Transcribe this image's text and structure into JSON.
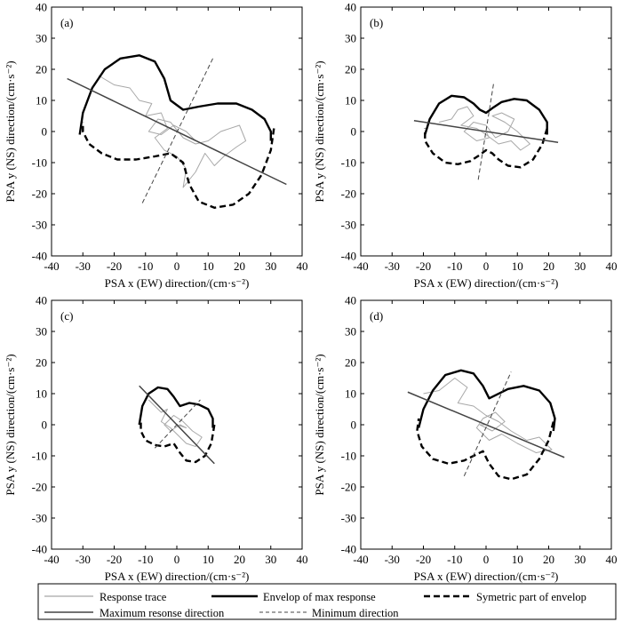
{
  "figure": {
    "legend": {
      "items": [
        {
          "label": "Response trace",
          "style": "thin-gray"
        },
        {
          "label": "Envelop of max response",
          "style": "thick-solid"
        },
        {
          "label": "Symetric part of envelop",
          "style": "thick-dashed"
        },
        {
          "label": "Maximum resonse direction",
          "style": "medium-solid"
        },
        {
          "label": "Minimum direction",
          "style": "thin-dashed"
        }
      ]
    },
    "colors": {
      "trace": "#a8a8a8",
      "envelope": "#000000",
      "max_direction": "#444444",
      "min_direction": "#444444"
    }
  },
  "chart_data": [
    {
      "type": "scatter",
      "panel": "(a)",
      "title": "",
      "xlabel": "PSA x (EW) direction/(cm·s⁻²)",
      "ylabel": "PSA y (NS) direction/(cm·s⁻²)",
      "xlim": [
        -40,
        40
      ],
      "ylim": [
        -40,
        40
      ],
      "xticks": [
        -40,
        -30,
        -20,
        -10,
        0,
        10,
        20,
        30,
        40
      ],
      "yticks": [
        -40,
        -30,
        -20,
        -10,
        0,
        10,
        20,
        30,
        40
      ],
      "max_direction": {
        "x": [
          -35,
          35
        ],
        "y": [
          17,
          -17
        ]
      },
      "min_direction": {
        "x": [
          -11,
          11.5
        ],
        "y": [
          -23,
          23.5
        ]
      },
      "envelope": {
        "x": [
          -31,
          -30,
          -27,
          -23,
          -18,
          -12,
          -7,
          -4,
          -2,
          2,
          7,
          13,
          19,
          24,
          28,
          30,
          30
        ],
        "y": [
          -1,
          6,
          14,
          20,
          23.5,
          24.5,
          22.5,
          17,
          10,
          7,
          8,
          9,
          9,
          7,
          4,
          0,
          -3
        ]
      },
      "trace": {
        "x": [
          -25,
          -20,
          -15,
          -12,
          -8,
          -10,
          -5,
          -3,
          -7,
          -4,
          0,
          3,
          2,
          6,
          9,
          12,
          15,
          19,
          22,
          20,
          14,
          10,
          6,
          2,
          -2,
          -6,
          -9,
          -5,
          -1,
          3,
          6,
          4,
          0
        ],
        "y": [
          18,
          15,
          14,
          10,
          9,
          5,
          6,
          1,
          -2,
          -6,
          -8,
          -12,
          -18,
          -13,
          -7,
          -11,
          -8,
          -5,
          -3,
          2,
          0,
          -3,
          -4,
          -2,
          3,
          4,
          0,
          -1,
          2,
          0,
          -3,
          -2,
          0
        ]
      }
    },
    {
      "type": "scatter",
      "panel": "(b)",
      "title": "",
      "xlabel": "PSA x (EW) direction/(cm·s⁻²)",
      "ylabel": "PSA y (NS) direction/(cm·s⁻²)",
      "xlim": [
        -40,
        40
      ],
      "ylim": [
        -40,
        40
      ],
      "xticks": [
        -40,
        -30,
        -20,
        -10,
        0,
        10,
        20,
        30,
        40
      ],
      "yticks": [
        -40,
        -30,
        -20,
        -10,
        0,
        10,
        20,
        30,
        40
      ],
      "max_direction": {
        "x": [
          -23,
          23
        ],
        "y": [
          3.5,
          -3.5
        ]
      },
      "min_direction": {
        "x": [
          -2.5,
          2.5
        ],
        "y": [
          -15.5,
          16
        ]
      },
      "envelope": {
        "x": [
          -19.5,
          -18,
          -15,
          -11,
          -7,
          -4,
          -2,
          0,
          2,
          5,
          9,
          13,
          17,
          19.5,
          19.5
        ],
        "y": [
          -1,
          4,
          9,
          11.5,
          11,
          9,
          7,
          6,
          7.5,
          9.5,
          10.5,
          10,
          7,
          3,
          -1
        ]
      },
      "trace": {
        "x": [
          -15,
          -11,
          -9,
          -6,
          -4,
          -8,
          -3,
          0,
          4,
          8,
          11,
          14,
          10,
          6,
          2,
          5,
          9,
          7,
          3,
          0,
          -4,
          -7,
          -3,
          1,
          0
        ],
        "y": [
          3,
          4,
          7,
          8,
          5,
          2,
          1,
          -1,
          -4,
          -3,
          -6,
          -4,
          0,
          3,
          5,
          6,
          4,
          0,
          -2,
          2,
          3,
          0,
          -3,
          -2,
          0
        ]
      }
    },
    {
      "type": "scatter",
      "panel": "(c)",
      "title": "",
      "xlabel": "PSA x (EW) direction/(cm·s⁻²)",
      "ylabel": "PSA y (NS) direction/(cm·s⁻²)",
      "xlim": [
        -40,
        40
      ],
      "ylim": [
        -40,
        40
      ],
      "xticks": [
        -40,
        -30,
        -20,
        -10,
        0,
        10,
        20,
        30,
        40
      ],
      "yticks": [
        -40,
        -30,
        -20,
        -10,
        0,
        10,
        20,
        30,
        40
      ],
      "max_direction": {
        "x": [
          -12,
          12
        ],
        "y": [
          12.5,
          -12.5
        ]
      },
      "min_direction": {
        "x": [
          -7,
          7.5
        ],
        "y": [
          -7.5,
          8
        ]
      },
      "envelope": {
        "x": [
          -12,
          -11,
          -9,
          -6,
          -3,
          -1,
          1,
          4,
          7,
          10,
          11.5,
          11.5
        ],
        "y": [
          0,
          6,
          10,
          12,
          11.5,
          9,
          6,
          7,
          6.5,
          5,
          2,
          -1
        ]
      },
      "trace": {
        "x": [
          -9,
          -7,
          -5,
          -3,
          -5,
          -2,
          0,
          3,
          6,
          8,
          5,
          2,
          -1,
          -4,
          -2,
          1,
          3,
          0
        ],
        "y": [
          8,
          6,
          4,
          5,
          1,
          -1,
          -3,
          -6,
          -7,
          -4,
          -2,
          1,
          3,
          0,
          -2,
          0,
          -1,
          0
        ]
      }
    },
    {
      "type": "scatter",
      "panel": "(d)",
      "title": "",
      "xlabel": "PSA x (EW) direction/(cm·s⁻²)",
      "ylabel": "PSA y (NS) direction/(cm·s⁻²)",
      "xlim": [
        -40,
        40
      ],
      "ylim": [
        -40,
        40
      ],
      "xticks": [
        -40,
        -30,
        -20,
        -10,
        0,
        10,
        20,
        30,
        40
      ],
      "yticks": [
        -40,
        -30,
        -20,
        -10,
        0,
        10,
        20,
        30,
        40
      ],
      "max_direction": {
        "x": [
          -25,
          25
        ],
        "y": [
          10.5,
          -10.5
        ]
      },
      "min_direction": {
        "x": [
          -7,
          8
        ],
        "y": [
          -16.5,
          17
        ]
      },
      "envelope": {
        "x": [
          -21.5,
          -20,
          -17,
          -13,
          -8,
          -4,
          -1,
          1,
          3,
          7,
          12,
          17,
          20.5,
          22,
          21.5
        ],
        "y": [
          -1,
          5,
          11,
          16,
          17.5,
          16.5,
          12.5,
          8.5,
          9.5,
          11.5,
          12.5,
          11,
          7,
          2,
          -2
        ]
      },
      "trace": {
        "x": [
          -20,
          -15,
          -10,
          -6,
          -9,
          -4,
          0,
          4,
          8,
          13,
          17,
          21,
          16,
          10,
          5,
          1,
          -3,
          -1,
          3,
          6,
          2,
          -2,
          0
        ],
        "y": [
          10,
          11,
          15,
          12,
          7,
          6,
          3,
          1,
          -2,
          -5,
          -4,
          -8,
          -9,
          -6,
          -3,
          -5,
          -1,
          2,
          4,
          1,
          -2,
          0,
          0
        ]
      }
    }
  ]
}
